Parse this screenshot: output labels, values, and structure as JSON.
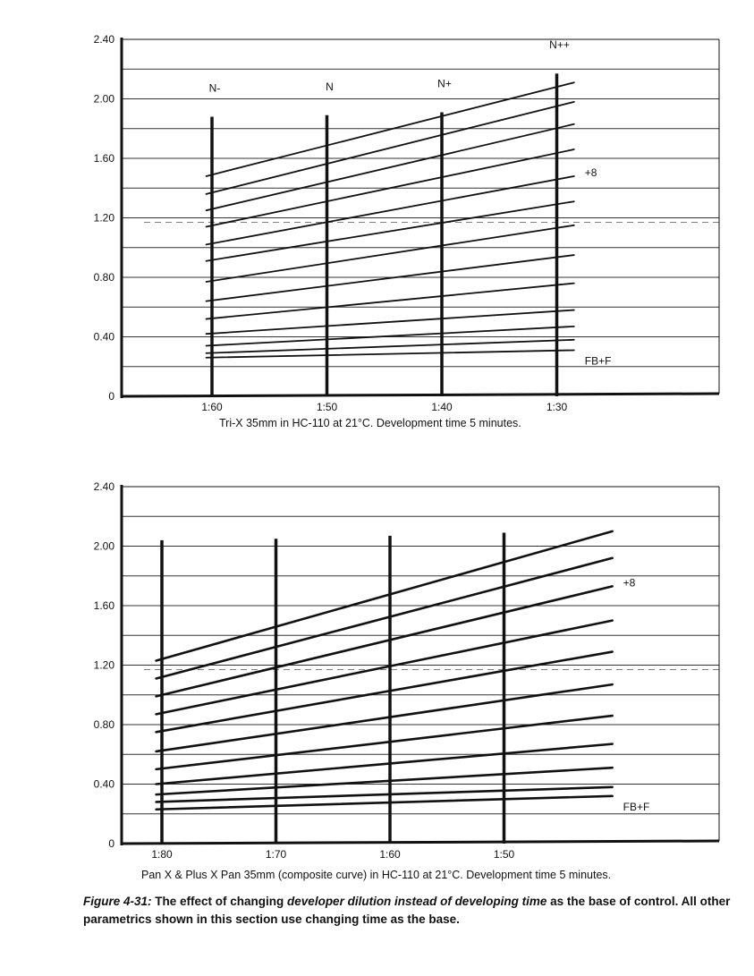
{
  "chart_data": [
    {
      "type": "line",
      "caption": "Tri-X 35mm in HC-110 at 21°C. Development time 5 minutes.",
      "ylim": [
        0,
        2.4
      ],
      "y_ticks": [
        "0",
        "0.40",
        "0.80",
        "1.20",
        "1.60",
        "2.00",
        "2.40"
      ],
      "y_tick_values": [
        0,
        0.4,
        0.8,
        1.2,
        1.6,
        2.0,
        2.4
      ],
      "x_ticks": [
        "1:60",
        "1:50",
        "1:40",
        "1:30"
      ],
      "x_tick_positions": [
        0,
        1,
        2,
        3
      ],
      "xlim": [
        -0.85,
        4.3
      ],
      "x_curve_range": [
        -0.05,
        3.15
      ],
      "reference_line": 1.17,
      "grid": true,
      "dilution_markers": [
        {
          "label": "N-",
          "x": 0,
          "top": 1.88
        },
        {
          "label": "N",
          "x": 1,
          "top": 1.89
        },
        {
          "label": "N+",
          "x": 2,
          "top": 1.91
        },
        {
          "label": "N++",
          "x": 3,
          "top": 2.17
        }
      ],
      "series": [
        {
          "start": 1.48,
          "end": 2.11
        },
        {
          "start": 1.36,
          "end": 1.98
        },
        {
          "start": 1.25,
          "end": 1.83
        },
        {
          "start": 1.14,
          "end": 1.66
        },
        {
          "start": 1.02,
          "end": 1.48,
          "label": "+8"
        },
        {
          "start": 0.91,
          "end": 1.31
        },
        {
          "start": 0.77,
          "end": 1.15
        },
        {
          "start": 0.64,
          "end": 0.95
        },
        {
          "start": 0.52,
          "end": 0.76
        },
        {
          "start": 0.42,
          "end": 0.58
        },
        {
          "start": 0.34,
          "end": 0.47
        },
        {
          "start": 0.29,
          "end": 0.38
        },
        {
          "start": 0.26,
          "end": 0.31,
          "label": "FB+F"
        }
      ]
    },
    {
      "type": "line",
      "caption": "Pan X & Plus X Pan 35mm (composite curve) in HC-110 at 21°C. Development time 5 minutes.",
      "ylim": [
        0,
        2.4
      ],
      "y_ticks": [
        "0",
        "0.40",
        "0.80",
        "1.20",
        "1.60",
        "2.00",
        "2.40"
      ],
      "y_tick_values": [
        0,
        0.4,
        0.8,
        1.2,
        1.6,
        2.0,
        2.4
      ],
      "x_ticks": [
        "1:80",
        "1:70",
        "1:60",
        "1:50"
      ],
      "x_tick_positions": [
        0,
        1,
        2,
        3
      ],
      "xlim": [
        -0.3,
        4.9
      ],
      "x_curve_range": [
        -0.05,
        3.95
      ],
      "reference_line": 1.17,
      "grid": true,
      "dilution_markers": [
        {
          "label": "",
          "x": 0,
          "top": 2.04
        },
        {
          "label": "",
          "x": 1,
          "top": 2.05
        },
        {
          "label": "",
          "x": 2,
          "top": 2.07
        },
        {
          "label": "",
          "x": 3,
          "top": 2.09
        }
      ],
      "series": [
        {
          "start": 1.23,
          "end": 2.1
        },
        {
          "start": 1.11,
          "end": 1.92
        },
        {
          "start": 0.99,
          "end": 1.73,
          "label": "+8"
        },
        {
          "start": 0.87,
          "end": 1.5
        },
        {
          "start": 0.75,
          "end": 1.29
        },
        {
          "start": 0.62,
          "end": 1.07
        },
        {
          "start": 0.5,
          "end": 0.86
        },
        {
          "start": 0.4,
          "end": 0.67
        },
        {
          "start": 0.33,
          "end": 0.51
        },
        {
          "start": 0.28,
          "end": 0.38
        },
        {
          "start": 0.23,
          "end": 0.32,
          "label": "FB+F"
        }
      ]
    }
  ],
  "figure_caption": {
    "figure_label": "Figure 4-31:",
    "part1": " The effect of changing ",
    "emphasis": "developer dilution instead of developing time",
    "part2": " as the base of control. All other parametrics shown in this section use changing time as the base."
  }
}
